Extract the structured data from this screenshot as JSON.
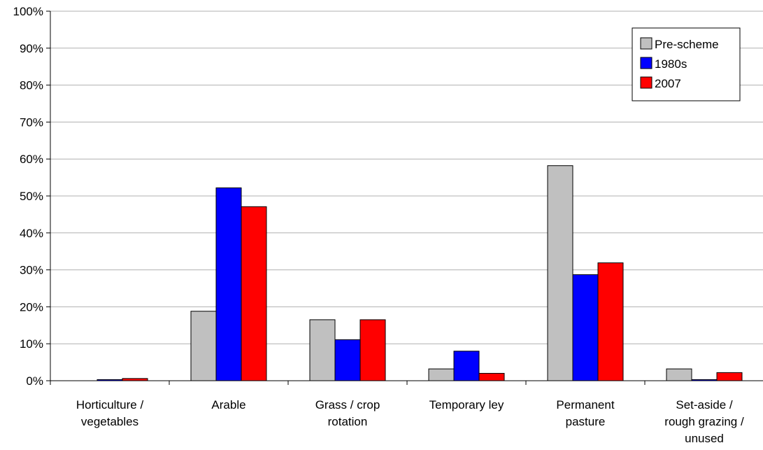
{
  "chart_data": {
    "type": "bar",
    "categories": [
      [
        "Horticulture /",
        "vegetables"
      ],
      [
        "Arable"
      ],
      [
        "Grass / crop",
        "rotation"
      ],
      [
        "Temporary ley"
      ],
      [
        "Permanent",
        "pasture"
      ],
      [
        "Set-aside /",
        "rough grazing /",
        "unused"
      ]
    ],
    "series": [
      {
        "name": "Pre-scheme",
        "color": "#c0c0c0",
        "values": [
          0.0,
          18.8,
          16.5,
          3.2,
          58.2,
          3.2
        ]
      },
      {
        "name": "1980s",
        "color": "#0000ff",
        "values": [
          0.3,
          52.2,
          11.1,
          8.0,
          28.7,
          0.3
        ]
      },
      {
        "name": "2007",
        "color": "#ff0000",
        "values": [
          0.6,
          47.1,
          16.5,
          2.0,
          31.9,
          2.2
        ]
      }
    ],
    "ylim": [
      0,
      100
    ],
    "y_ticks": [
      "0%",
      "10%",
      "20%",
      "30%",
      "40%",
      "50%",
      "60%",
      "70%",
      "80%",
      "90%",
      "100%"
    ],
    "grid": true,
    "legend_position": "top-right"
  }
}
